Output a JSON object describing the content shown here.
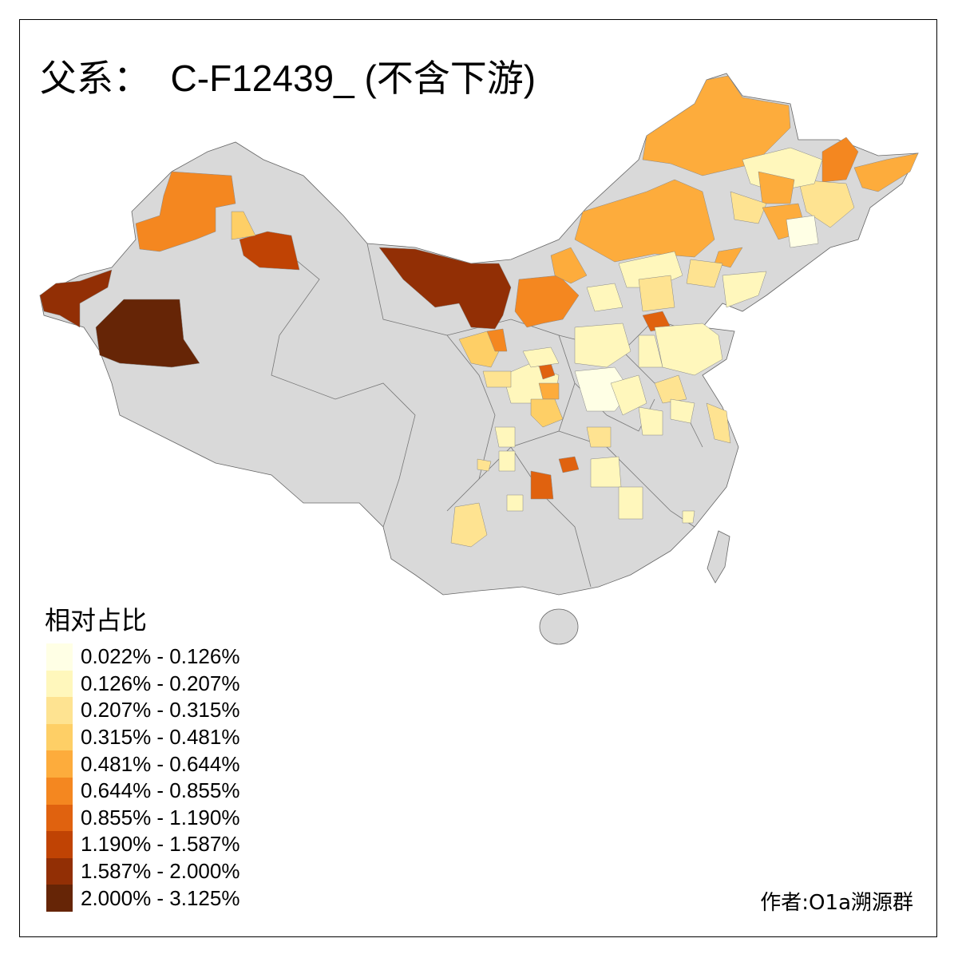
{
  "title": "父系：  C-F12439_ (不含下游)",
  "legend": {
    "title": "相对占比",
    "items": [
      {
        "label": "0.022% - 0.126%",
        "color": "#ffffe5"
      },
      {
        "label": "0.126% - 0.207%",
        "color": "#fff7bc"
      },
      {
        "label": "0.207% - 0.315%",
        "color": "#fee391"
      },
      {
        "label": "0.315% - 0.481%",
        "color": "#fecf66"
      },
      {
        "label": "0.481% - 0.644%",
        "color": "#fdac3c"
      },
      {
        "label": "0.644% - 0.855%",
        "color": "#f48720"
      },
      {
        "label": "0.855% - 1.190%",
        "color": "#e0620f"
      },
      {
        "label": "1.190% - 1.587%",
        "color": "#c04304"
      },
      {
        "label": "1.587% - 2.000%",
        "color": "#922f05"
      },
      {
        "label": "2.000% - 3.125%",
        "color": "#662506"
      }
    ],
    "no_data_color": "#d9d9d9"
  },
  "author": "作者:O1a溯源群"
}
